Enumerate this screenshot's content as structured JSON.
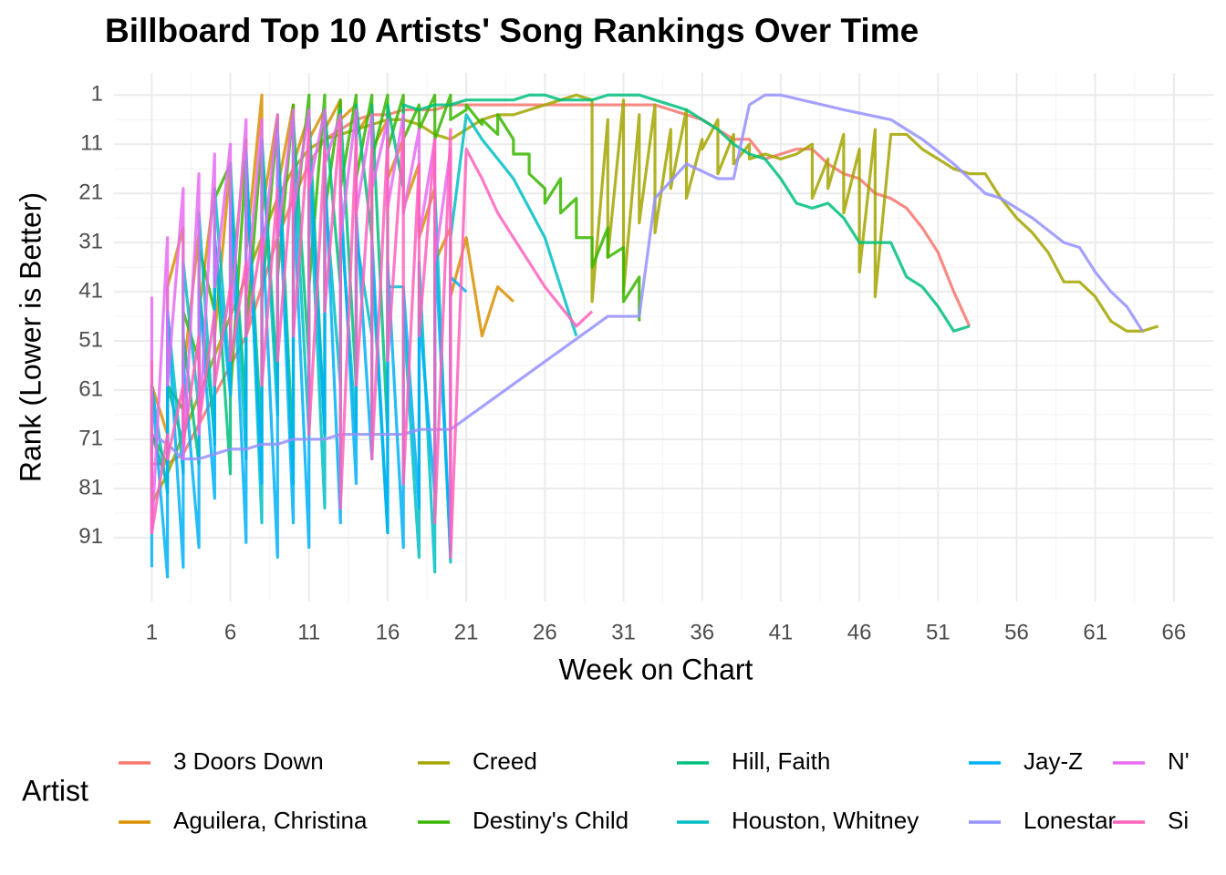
{
  "chart_data": {
    "type": "line",
    "title": "Billboard Top 10 Artists' Song Rankings Over Time",
    "x_label": "Week on Chart",
    "y_label": "Rank (Lower is Better)",
    "legend_title": "Artist",
    "legend_position": "bottom",
    "y_reversed": true,
    "grid": true,
    "xlim": [
      -1.4,
      68.5
    ],
    "ylim": [
      -3.5,
      104
    ],
    "xticks": [
      1,
      6,
      11,
      16,
      21,
      26,
      31,
      36,
      41,
      46,
      51,
      56,
      61,
      66
    ],
    "yticks": [
      1,
      11,
      21,
      31,
      41,
      51,
      61,
      71,
      81,
      91
    ],
    "series": [
      {
        "name": "3 Doors Down",
        "color": "#F8766D",
        "x": [
          1,
          2,
          3,
          4,
          5,
          6,
          7,
          8,
          9,
          10,
          11,
          12,
          13,
          14,
          15,
          16,
          17,
          18,
          19,
          20,
          21,
          22,
          23,
          24,
          25,
          26,
          27,
          28,
          29,
          30,
          31,
          32,
          33,
          34,
          35,
          36,
          37,
          38,
          39,
          40,
          41,
          42,
          43,
          44,
          45,
          46,
          47,
          48,
          49,
          50,
          51,
          52,
          53
        ],
        "values": [
          76,
          76,
          74,
          68,
          62,
          56,
          50,
          40,
          30,
          22,
          15,
          10,
          8,
          6,
          5,
          5,
          4,
          4,
          4,
          3,
          3,
          3,
          3,
          3,
          3,
          3,
          3,
          3,
          3,
          3,
          3,
          3,
          3,
          4,
          5,
          6,
          8,
          10,
          10,
          14,
          13,
          12,
          12,
          15,
          17,
          18,
          21,
          22,
          24,
          28,
          33,
          41,
          48
        ]
      },
      {
        "name": "Aguilera, Christina",
        "color": "#D89000",
        "x": [
          1,
          1,
          2,
          2,
          3,
          3,
          4,
          4,
          5,
          5,
          6,
          6,
          7,
          7,
          8,
          8,
          9,
          9,
          10,
          10,
          11,
          11,
          12,
          12,
          13,
          13,
          14,
          14,
          15,
          15,
          16,
          16,
          17,
          17,
          18,
          18,
          19,
          19,
          20,
          20,
          21,
          22,
          23,
          24
        ],
        "values": [
          82,
          60,
          70,
          40,
          28,
          58,
          29,
          45,
          20,
          50,
          15,
          42,
          10,
          33,
          1,
          25,
          5,
          20,
          3,
          15,
          5,
          10,
          4,
          8,
          2,
          6,
          3,
          9,
          4,
          12,
          6,
          18,
          10,
          24,
          15,
          30,
          20,
          35,
          28,
          42,
          30,
          50,
          40,
          43
        ]
      },
      {
        "name": "Creed",
        "color": "#A3A500",
        "x": [
          1,
          2,
          3,
          4,
          5,
          6,
          7,
          8,
          9,
          10,
          11,
          12,
          13,
          14,
          15,
          16,
          17,
          18,
          19,
          20,
          21,
          22,
          23,
          24,
          25,
          26,
          27,
          28,
          29,
          29,
          30,
          30,
          31,
          31,
          32,
          32,
          33,
          33,
          34,
          34,
          35,
          35,
          36,
          36,
          37,
          37,
          38,
          38,
          39,
          39,
          40,
          41,
          42,
          43,
          43,
          44,
          44,
          45,
          45,
          46,
          46,
          47,
          47,
          48,
          49,
          50,
          51,
          52,
          53,
          54,
          55,
          56,
          57,
          58,
          59,
          60,
          61,
          62,
          63,
          64,
          65
        ],
        "values": [
          84,
          78,
          70,
          62,
          54,
          46,
          38,
          30,
          22,
          16,
          12,
          10,
          9,
          8,
          7,
          6,
          6,
          7,
          9,
          10,
          8,
          6,
          5,
          5,
          4,
          3,
          2,
          1,
          2,
          43,
          6,
          34,
          2,
          41,
          5,
          27,
          3,
          29,
          8,
          20,
          4,
          22,
          10,
          12,
          6,
          17,
          9,
          15,
          11,
          14,
          13,
          14,
          13,
          11,
          22,
          14,
          20,
          9,
          25,
          12,
          37,
          8,
          42,
          9,
          9,
          12,
          14,
          16,
          17,
          17,
          22,
          26,
          29,
          33,
          39,
          39,
          42,
          47,
          49,
          49,
          48
        ]
      },
      {
        "name": "Destiny's Child",
        "color": "#39B600",
        "x": [
          1,
          1,
          2,
          2,
          3,
          3,
          4,
          4,
          5,
          5,
          6,
          6,
          7,
          7,
          8,
          8,
          9,
          9,
          10,
          10,
          11,
          11,
          12,
          12,
          13,
          13,
          14,
          14,
          15,
          15,
          16,
          16,
          17,
          17,
          18,
          18,
          19,
          19,
          20,
          20,
          21,
          21,
          22,
          22,
          23,
          23,
          24,
          24,
          25,
          25,
          26,
          26,
          27,
          27,
          28,
          28,
          29,
          29,
          30,
          30,
          31,
          31,
          32,
          32
        ],
        "values": [
          83,
          70,
          76,
          60,
          65,
          45,
          55,
          32,
          45,
          22,
          15,
          62,
          14,
          50,
          10,
          42,
          6,
          38,
          3,
          30,
          1,
          40,
          1,
          25,
          2,
          20,
          1,
          18,
          1,
          14,
          1,
          12,
          1,
          10,
          3,
          8,
          1,
          10,
          1,
          6,
          4,
          3,
          7,
          6,
          9,
          5,
          10,
          13,
          13,
          17,
          20,
          23,
          18,
          25,
          22,
          30,
          30,
          36,
          28,
          34,
          32,
          43,
          38,
          47
        ]
      },
      {
        "name": "Hill, Faith",
        "color": "#00BF7D",
        "x": [
          1,
          1,
          2,
          2,
          3,
          3,
          4,
          4,
          5,
          5,
          6,
          6,
          7,
          7,
          8,
          8,
          9,
          9,
          10,
          10,
          11,
          11,
          12,
          12,
          13,
          13,
          14,
          14,
          15,
          15,
          16,
          16,
          17,
          17,
          18,
          19,
          20,
          21,
          22,
          23,
          24,
          25,
          26,
          27,
          28,
          29,
          30,
          31,
          32,
          33,
          34,
          35,
          36,
          37,
          38,
          39,
          40,
          41,
          42,
          43,
          44,
          45,
          46,
          47,
          48,
          49,
          50,
          51,
          52,
          53
        ],
        "values": [
          75,
          70,
          80,
          60,
          72,
          50,
          76,
          40,
          70,
          30,
          78,
          20,
          65,
          15,
          72,
          10,
          60,
          8,
          75,
          6,
          55,
          5,
          70,
          4,
          40,
          4,
          60,
          3,
          30,
          3,
          70,
          3,
          20,
          3,
          4,
          3,
          3,
          2,
          2,
          2,
          2,
          1,
          1,
          2,
          2,
          2,
          1,
          1,
          1,
          2,
          3,
          4,
          6,
          8,
          11,
          13,
          14,
          18,
          23,
          24,
          23,
          26,
          31,
          31,
          31,
          38,
          40,
          44,
          49,
          48
        ]
      },
      {
        "name": "Houston, Whitney",
        "color": "#00BFC4",
        "x": [
          1,
          1,
          2,
          2,
          3,
          3,
          4,
          4,
          5,
          5,
          6,
          6,
          7,
          7,
          8,
          8,
          9,
          9,
          10,
          10,
          11,
          11,
          12,
          12,
          13,
          13,
          14,
          14,
          15,
          15,
          16,
          16,
          17,
          17,
          18,
          18,
          19,
          19,
          20,
          20,
          21,
          22,
          23,
          24,
          25,
          26,
          27,
          28
        ],
        "values": [
          70,
          60,
          82,
          45,
          78,
          35,
          65,
          25,
          72,
          20,
          60,
          15,
          75,
          12,
          88,
          10,
          66,
          9,
          80,
          12,
          70,
          15,
          85,
          20,
          60,
          25,
          70,
          30,
          50,
          35,
          90,
          40,
          40,
          45,
          95,
          35,
          98,
          20,
          96,
          30,
          5,
          10,
          14,
          18,
          24,
          30,
          40,
          50
        ]
      },
      {
        "name": "Jay-Z",
        "color": "#00B0F6",
        "x": [
          1,
          1,
          2,
          2,
          3,
          3,
          4,
          4,
          5,
          5,
          6,
          6,
          7,
          7,
          8,
          8,
          9,
          9,
          10,
          10,
          11,
          11,
          12,
          12,
          13,
          13,
          14,
          14,
          15,
          15,
          16,
          16,
          17,
          17,
          18,
          18,
          19,
          19,
          20,
          20,
          21
        ],
        "values": [
          97,
          60,
          99,
          45,
          97,
          55,
          93,
          40,
          83,
          30,
          62,
          20,
          92,
          15,
          80,
          25,
          95,
          12,
          88,
          20,
          93,
          12,
          70,
          15,
          88,
          20,
          80,
          25,
          75,
          30,
          90,
          35,
          93,
          40,
          85,
          45,
          82,
          30,
          94,
          38,
          41
        ]
      },
      {
        "name": "Lonestar",
        "color": "#9590FF",
        "x": [
          1,
          2,
          3,
          4,
          5,
          6,
          7,
          8,
          9,
          10,
          11,
          12,
          13,
          14,
          15,
          16,
          17,
          18,
          19,
          20,
          30,
          32,
          33,
          35,
          37,
          38,
          39,
          40,
          41,
          45,
          48,
          50,
          52,
          54,
          55,
          57,
          59,
          60,
          61,
          62,
          63,
          64
        ],
        "values": [
          70,
          72,
          75,
          75,
          74,
          73,
          73,
          72,
          72,
          71,
          71,
          71,
          70,
          70,
          70,
          70,
          70,
          69,
          69,
          69,
          46,
          46,
          22,
          15,
          18,
          18,
          3,
          1,
          1,
          4,
          6,
          10,
          15,
          21,
          22,
          26,
          31,
          32,
          37,
          41,
          44,
          49
        ]
      },
      {
        "name": "N'",
        "color": "#E76BF3",
        "x": [
          1,
          1,
          2,
          2,
          3,
          3,
          4,
          4,
          5,
          5,
          6,
          6,
          7,
          7,
          8,
          8,
          9,
          9,
          10,
          10,
          11,
          11,
          12,
          12,
          13,
          13,
          14,
          14,
          15,
          15,
          16,
          16,
          17,
          17,
          18,
          18,
          19,
          19,
          20,
          20
        ],
        "values": [
          42,
          90,
          30,
          60,
          20,
          75,
          17,
          70,
          13,
          40,
          11,
          48,
          6,
          42,
          6,
          35,
          5,
          30,
          4,
          25,
          4,
          20,
          4,
          15,
          5,
          30,
          4,
          25,
          5,
          20,
          6,
          24,
          5,
          25,
          8,
          30,
          10,
          35,
          12,
          92
        ]
      },
      {
        "name": "Si",
        "color": "#FF62BC",
        "x": [
          1,
          1,
          2,
          2,
          3,
          3,
          4,
          4,
          5,
          5,
          6,
          6,
          7,
          7,
          8,
          8,
          9,
          9,
          10,
          10,
          11,
          11,
          12,
          12,
          13,
          13,
          14,
          14,
          15,
          15,
          16,
          16,
          17,
          17,
          18,
          18,
          19,
          19,
          20,
          20,
          21,
          22,
          23,
          24,
          25,
          26,
          27,
          28,
          29
        ],
        "values": [
          55,
          90,
          70,
          75,
          60,
          72,
          50,
          68,
          45,
          60,
          40,
          55,
          35,
          50,
          30,
          60,
          20,
          55,
          15,
          50,
          8,
          70,
          12,
          45,
          6,
          85,
          10,
          60,
          12,
          75,
          10,
          55,
          8,
          80,
          15,
          50,
          10,
          88,
          8,
          95,
          12,
          18,
          25,
          30,
          35,
          40,
          44,
          48,
          45
        ]
      }
    ]
  }
}
